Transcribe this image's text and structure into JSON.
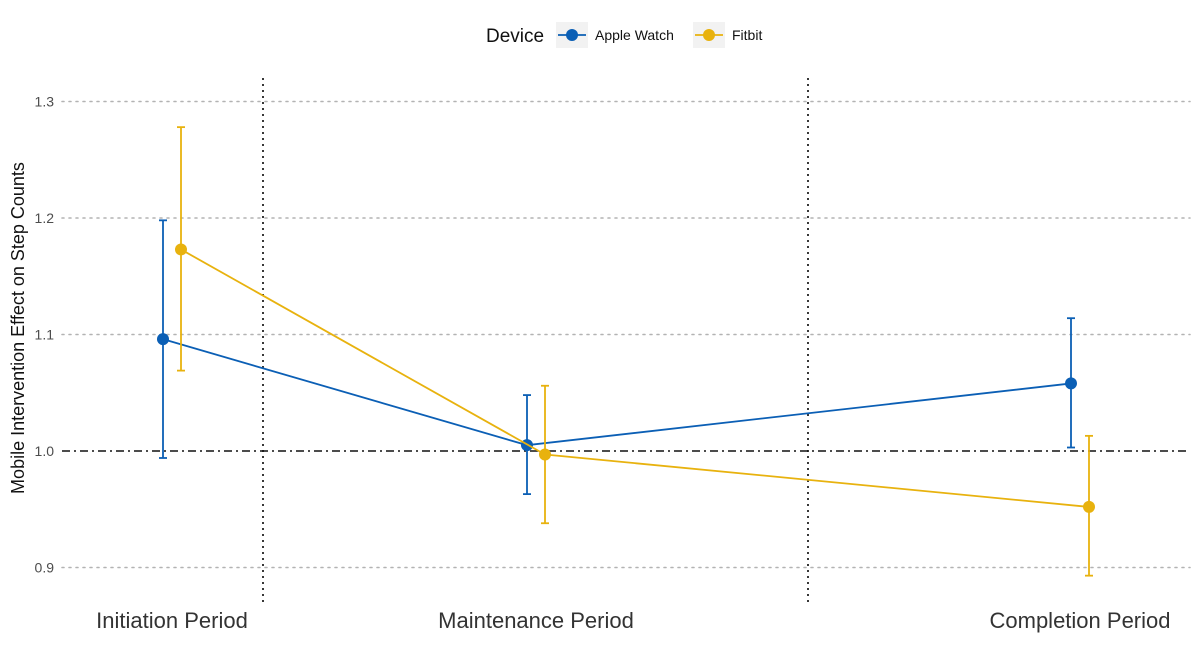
{
  "chart_data": {
    "type": "line",
    "ylabel": "Mobile Intervention Effect on Step Counts",
    "xlabel": "",
    "categories": [
      "Initiation Period",
      "Maintenance Period",
      "Completion Period"
    ],
    "ylim": [
      0.88,
      1.32
    ],
    "yticks": [
      0.9,
      1.0,
      1.1,
      1.2,
      1.3
    ],
    "ytick_labels": [
      "0.9",
      "1.0",
      "1.1",
      "1.2",
      "1.3"
    ],
    "reference_line": 1.0,
    "grid": "horizontal dotted",
    "legend": {
      "title": "Device",
      "position": "top"
    },
    "series": [
      {
        "name": "Apple Watch",
        "color": "#0b5fb5",
        "values": [
          1.096,
          1.005,
          1.058
        ],
        "lower": [
          0.994,
          0.963,
          1.003
        ],
        "upper": [
          1.198,
          1.048,
          1.114
        ]
      },
      {
        "name": "Fitbit",
        "color": "#e8b20e",
        "values": [
          1.173,
          0.997,
          0.952
        ],
        "lower": [
          1.069,
          0.938,
          0.893
        ],
        "upper": [
          1.278,
          1.056,
          1.013
        ]
      }
    ]
  }
}
